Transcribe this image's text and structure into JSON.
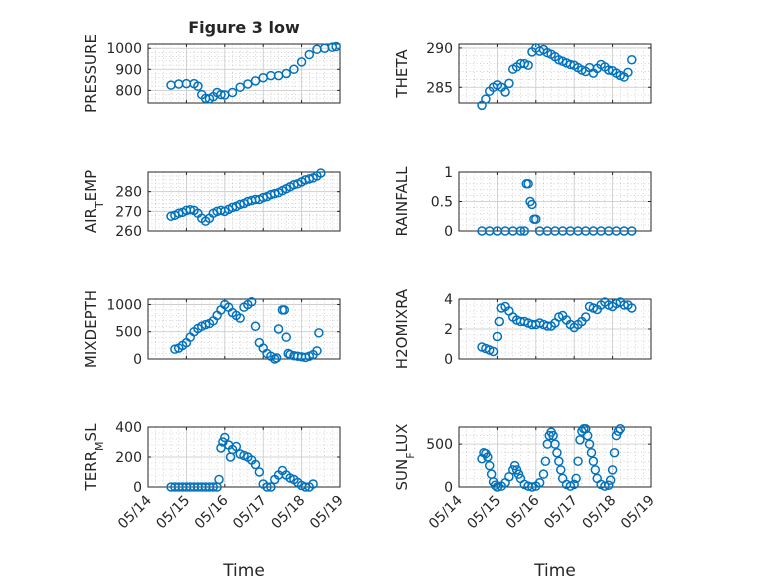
{
  "figure": {
    "title": "Figure 3 low",
    "xlabel": "Time"
  },
  "marker_color": "#0072BD",
  "x_ticks": [
    "05/14",
    "05/15",
    "05/16",
    "05/17",
    "05/18",
    "05/19"
  ],
  "chart_data": [
    {
      "type": "scatter",
      "id": "pressure",
      "title": "Figure 3 low",
      "ylabel": [
        {
          "t": "PRESSURE"
        }
      ],
      "ylim": [
        740,
        1020
      ],
      "yticks": [
        800,
        900,
        1000
      ],
      "xlim": [
        14,
        19
      ],
      "xlabel": "",
      "points": [
        [
          14.6,
          825
        ],
        [
          14.8,
          830
        ],
        [
          15.0,
          832
        ],
        [
          15.2,
          832
        ],
        [
          15.3,
          820
        ],
        [
          15.4,
          780
        ],
        [
          15.5,
          762
        ],
        [
          15.6,
          760
        ],
        [
          15.7,
          770
        ],
        [
          15.8,
          790
        ],
        [
          15.9,
          780
        ],
        [
          16.0,
          778
        ],
        [
          16.2,
          790
        ],
        [
          16.4,
          815
        ],
        [
          16.6,
          830
        ],
        [
          16.8,
          845
        ],
        [
          17.0,
          860
        ],
        [
          17.2,
          870
        ],
        [
          17.4,
          870
        ],
        [
          17.6,
          880
        ],
        [
          17.8,
          900
        ],
        [
          18.0,
          935
        ],
        [
          18.2,
          970
        ],
        [
          18.4,
          995
        ],
        [
          18.6,
          1000
        ],
        [
          18.8,
          1005
        ],
        [
          18.9,
          1008
        ]
      ]
    },
    {
      "type": "scatter",
      "id": "theta",
      "ylabel": [
        {
          "t": "THETA"
        }
      ],
      "ylim": [
        283,
        290.5
      ],
      "yticks": [
        285,
        290
      ],
      "xlim": [
        14,
        19
      ],
      "xlabel": "",
      "points": [
        [
          14.6,
          282.7
        ],
        [
          14.7,
          283.5
        ],
        [
          14.8,
          284.5
        ],
        [
          14.9,
          285.0
        ],
        [
          15.0,
          285.3
        ],
        [
          15.1,
          285.0
        ],
        [
          15.2,
          284.4
        ],
        [
          15.3,
          285.5
        ],
        [
          15.4,
          287.3
        ],
        [
          15.5,
          287.6
        ],
        [
          15.6,
          288.0
        ],
        [
          15.7,
          288.0
        ],
        [
          15.8,
          287.8
        ],
        [
          15.9,
          289.5
        ],
        [
          16.0,
          290.0
        ],
        [
          16.1,
          289.6
        ],
        [
          16.2,
          289.8
        ],
        [
          16.3,
          289.4
        ],
        [
          16.4,
          289.2
        ],
        [
          16.5,
          288.9
        ],
        [
          16.6,
          288.5
        ],
        [
          16.7,
          288.3
        ],
        [
          16.8,
          288.1
        ],
        [
          16.9,
          287.9
        ],
        [
          17.0,
          287.8
        ],
        [
          17.1,
          287.5
        ],
        [
          17.2,
          287.2
        ],
        [
          17.3,
          287.0
        ],
        [
          17.4,
          287.5
        ],
        [
          17.5,
          286.8
        ],
        [
          17.6,
          287.4
        ],
        [
          17.7,
          287.9
        ],
        [
          17.8,
          287.6
        ],
        [
          17.9,
          287.2
        ],
        [
          18.0,
          287.1
        ],
        [
          18.1,
          286.8
        ],
        [
          18.2,
          286.5
        ],
        [
          18.3,
          286.3
        ],
        [
          18.4,
          286.9
        ],
        [
          18.5,
          288.5
        ]
      ]
    },
    {
      "type": "scatter",
      "id": "airtemp",
      "ylabel": [
        {
          "t": "AIR"
        },
        {
          "t": "T",
          "sub": true
        },
        {
          "t": "EMP"
        }
      ],
      "ylim": [
        260,
        290
      ],
      "yticks": [
        260,
        270,
        280
      ],
      "xlim": [
        14,
        19
      ],
      "xlabel": "",
      "points": [
        [
          14.6,
          267.5
        ],
        [
          14.7,
          268.0
        ],
        [
          14.8,
          269.0
        ],
        [
          14.9,
          269.5
        ],
        [
          15.0,
          270.5
        ],
        [
          15.1,
          270.8
        ],
        [
          15.2,
          270.5
        ],
        [
          15.3,
          269.0
        ],
        [
          15.4,
          266.5
        ],
        [
          15.5,
          265.0
        ],
        [
          15.6,
          266.5
        ],
        [
          15.7,
          269.0
        ],
        [
          15.8,
          270.0
        ],
        [
          15.9,
          270.5
        ],
        [
          16.0,
          270.0
        ],
        [
          16.1,
          271.0
        ],
        [
          16.2,
          272.0
        ],
        [
          16.3,
          272.5
        ],
        [
          16.4,
          273.5
        ],
        [
          16.5,
          274.0
        ],
        [
          16.6,
          275.0
        ],
        [
          16.7,
          275.5
        ],
        [
          16.8,
          276.0
        ],
        [
          16.9,
          276.0
        ],
        [
          17.0,
          277.0
        ],
        [
          17.1,
          277.5
        ],
        [
          17.2,
          278.5
        ],
        [
          17.3,
          279.0
        ],
        [
          17.4,
          279.5
        ],
        [
          17.5,
          280.5
        ],
        [
          17.6,
          281.5
        ],
        [
          17.7,
          282.5
        ],
        [
          17.8,
          283.5
        ],
        [
          17.9,
          284.0
        ],
        [
          18.0,
          285.0
        ],
        [
          18.1,
          286.0
        ],
        [
          18.2,
          286.5
        ],
        [
          18.3,
          287.0
        ],
        [
          18.4,
          288.0
        ],
        [
          18.5,
          289.5
        ]
      ]
    },
    {
      "type": "scatter",
      "id": "rainfall",
      "ylabel": [
        {
          "t": "RAINFALL"
        }
      ],
      "ylim": [
        0,
        1
      ],
      "yticks": [
        0,
        0.5,
        1
      ],
      "xlim": [
        14,
        19
      ],
      "xlabel": "",
      "points": [
        [
          14.6,
          0
        ],
        [
          14.8,
          0
        ],
        [
          15.0,
          0
        ],
        [
          15.2,
          0
        ],
        [
          15.4,
          0
        ],
        [
          15.6,
          0
        ],
        [
          15.7,
          0
        ],
        [
          15.75,
          0.8
        ],
        [
          15.8,
          0.8
        ],
        [
          15.85,
          0.5
        ],
        [
          15.9,
          0.45
        ],
        [
          15.95,
          0.2
        ],
        [
          16.0,
          0.2
        ],
        [
          16.1,
          0
        ],
        [
          16.3,
          0
        ],
        [
          16.5,
          0
        ],
        [
          16.7,
          0
        ],
        [
          16.9,
          0
        ],
        [
          17.1,
          0
        ],
        [
          17.3,
          0
        ],
        [
          17.5,
          0
        ],
        [
          17.7,
          0
        ],
        [
          17.9,
          0
        ],
        [
          18.1,
          0
        ],
        [
          18.3,
          0
        ],
        [
          18.5,
          0
        ]
      ]
    },
    {
      "type": "scatter",
      "id": "mixdepth",
      "ylabel": [
        {
          "t": "MIXDEPTH"
        }
      ],
      "ylim": [
        0,
        1100
      ],
      "yticks": [
        0,
        500,
        1000
      ],
      "xlim": [
        14,
        19
      ],
      "xlabel": "",
      "points": [
        [
          14.7,
          180
        ],
        [
          14.8,
          200
        ],
        [
          14.9,
          250
        ],
        [
          15.0,
          300
        ],
        [
          15.1,
          400
        ],
        [
          15.2,
          500
        ],
        [
          15.3,
          560
        ],
        [
          15.4,
          600
        ],
        [
          15.5,
          630
        ],
        [
          15.6,
          650
        ],
        [
          15.7,
          700
        ],
        [
          15.8,
          800
        ],
        [
          15.9,
          900
        ],
        [
          16.0,
          1000
        ],
        [
          16.1,
          950
        ],
        [
          16.2,
          850
        ],
        [
          16.3,
          800
        ],
        [
          16.4,
          750
        ],
        [
          16.5,
          950
        ],
        [
          16.6,
          1000
        ],
        [
          16.7,
          1050
        ],
        [
          16.8,
          600
        ],
        [
          16.9,
          300
        ],
        [
          17.0,
          200
        ],
        [
          17.1,
          100
        ],
        [
          17.2,
          50
        ],
        [
          17.3,
          0
        ],
        [
          17.35,
          20
        ],
        [
          17.4,
          550
        ],
        [
          17.5,
          900
        ],
        [
          17.55,
          900
        ],
        [
          17.6,
          400
        ],
        [
          17.65,
          100
        ],
        [
          17.7,
          80
        ],
        [
          17.8,
          60
        ],
        [
          17.9,
          50
        ],
        [
          18.0,
          40
        ],
        [
          18.1,
          30
        ],
        [
          18.2,
          50
        ],
        [
          18.3,
          80
        ],
        [
          18.4,
          150
        ],
        [
          18.45,
          480
        ]
      ]
    },
    {
      "type": "scatter",
      "id": "h2omixra",
      "ylabel": [
        {
          "t": "H2OMIXRA"
        }
      ],
      "ylim": [
        0,
        4
      ],
      "yticks": [
        0,
        2,
        4
      ],
      "xlim": [
        14,
        19
      ],
      "xlabel": "",
      "points": [
        [
          14.6,
          0.8
        ],
        [
          14.7,
          0.7
        ],
        [
          14.8,
          0.6
        ],
        [
          14.9,
          0.5
        ],
        [
          15.0,
          1.5
        ],
        [
          15.05,
          2.5
        ],
        [
          15.1,
          3.4
        ],
        [
          15.2,
          3.5
        ],
        [
          15.3,
          3.2
        ],
        [
          15.4,
          2.8
        ],
        [
          15.5,
          2.6
        ],
        [
          15.6,
          2.5
        ],
        [
          15.7,
          2.5
        ],
        [
          15.8,
          2.4
        ],
        [
          15.9,
          2.3
        ],
        [
          16.0,
          2.3
        ],
        [
          16.1,
          2.4
        ],
        [
          16.2,
          2.3
        ],
        [
          16.3,
          2.2
        ],
        [
          16.4,
          2.2
        ],
        [
          16.5,
          2.4
        ],
        [
          16.6,
          2.8
        ],
        [
          16.7,
          2.9
        ],
        [
          16.8,
          2.6
        ],
        [
          16.9,
          2.3
        ],
        [
          17.0,
          2.1
        ],
        [
          17.1,
          2.3
        ],
        [
          17.2,
          2.5
        ],
        [
          17.3,
          2.8
        ],
        [
          17.4,
          3.5
        ],
        [
          17.5,
          3.4
        ],
        [
          17.6,
          3.3
        ],
        [
          17.7,
          3.6
        ],
        [
          17.8,
          3.8
        ],
        [
          17.9,
          3.6
        ],
        [
          18.0,
          3.5
        ],
        [
          18.1,
          3.7
        ],
        [
          18.2,
          3.8
        ],
        [
          18.3,
          3.6
        ],
        [
          18.4,
          3.6
        ],
        [
          18.5,
          3.4
        ]
      ]
    },
    {
      "type": "scatter",
      "id": "terrmsl",
      "ylabel": [
        {
          "t": "TERR"
        },
        {
          "t": "M",
          "sub": true
        },
        {
          "t": "SL"
        }
      ],
      "ylim": [
        0,
        400
      ],
      "yticks": [
        0,
        200,
        400
      ],
      "xlim": [
        14,
        19
      ],
      "xlabel": "Time",
      "points": [
        [
          14.6,
          0
        ],
        [
          14.7,
          0
        ],
        [
          14.8,
          0
        ],
        [
          14.9,
          0
        ],
        [
          15.0,
          0
        ],
        [
          15.1,
          0
        ],
        [
          15.2,
          0
        ],
        [
          15.3,
          0
        ],
        [
          15.4,
          0
        ],
        [
          15.5,
          0
        ],
        [
          15.6,
          0
        ],
        [
          15.7,
          0
        ],
        [
          15.8,
          0
        ],
        [
          15.85,
          50
        ],
        [
          15.9,
          260
        ],
        [
          15.95,
          300
        ],
        [
          16.0,
          330
        ],
        [
          16.1,
          280
        ],
        [
          16.15,
          200
        ],
        [
          16.2,
          250
        ],
        [
          16.3,
          270
        ],
        [
          16.4,
          220
        ],
        [
          16.5,
          210
        ],
        [
          16.6,
          200
        ],
        [
          16.7,
          180
        ],
        [
          16.8,
          150
        ],
        [
          16.9,
          100
        ],
        [
          17.0,
          20
        ],
        [
          17.1,
          0
        ],
        [
          17.2,
          0
        ],
        [
          17.3,
          50
        ],
        [
          17.4,
          80
        ],
        [
          17.5,
          110
        ],
        [
          17.6,
          80
        ],
        [
          17.7,
          60
        ],
        [
          17.8,
          50
        ],
        [
          17.9,
          30
        ],
        [
          18.0,
          10
        ],
        [
          18.1,
          0
        ],
        [
          18.2,
          0
        ],
        [
          18.3,
          20
        ]
      ]
    },
    {
      "type": "scatter",
      "id": "sunflux",
      "ylabel": [
        {
          "t": "SUN"
        },
        {
          "t": "F",
          "sub": true
        },
        {
          "t": "LUX"
        }
      ],
      "ylim": [
        0,
        700
      ],
      "yticks": [
        0,
        500
      ],
      "xlim": [
        14,
        19
      ],
      "xlabel": "Time",
      "points": [
        [
          14.6,
          330
        ],
        [
          14.65,
          400
        ],
        [
          14.7,
          390
        ],
        [
          14.75,
          350
        ],
        [
          14.8,
          250
        ],
        [
          14.85,
          150
        ],
        [
          14.9,
          60
        ],
        [
          14.95,
          20
        ],
        [
          15.0,
          0
        ],
        [
          15.1,
          10
        ],
        [
          15.2,
          50
        ],
        [
          15.3,
          120
        ],
        [
          15.4,
          200
        ],
        [
          15.45,
          250
        ],
        [
          15.5,
          200
        ],
        [
          15.55,
          150
        ],
        [
          15.6,
          100
        ],
        [
          15.7,
          30
        ],
        [
          15.8,
          10
        ],
        [
          15.9,
          0
        ],
        [
          16.0,
          10
        ],
        [
          16.1,
          50
        ],
        [
          16.2,
          150
        ],
        [
          16.25,
          300
        ],
        [
          16.3,
          500
        ],
        [
          16.35,
          600
        ],
        [
          16.4,
          640
        ],
        [
          16.45,
          600
        ],
        [
          16.5,
          500
        ],
        [
          16.55,
          400
        ],
        [
          16.6,
          300
        ],
        [
          16.65,
          200
        ],
        [
          16.7,
          100
        ],
        [
          16.8,
          30
        ],
        [
          16.9,
          10
        ],
        [
          17.0,
          30
        ],
        [
          17.05,
          100
        ],
        [
          17.1,
          300
        ],
        [
          17.15,
          550
        ],
        [
          17.2,
          650
        ],
        [
          17.25,
          680
        ],
        [
          17.3,
          680
        ],
        [
          17.35,
          600
        ],
        [
          17.4,
          500
        ],
        [
          17.45,
          400
        ],
        [
          17.5,
          300
        ],
        [
          17.55,
          200
        ],
        [
          17.6,
          100
        ],
        [
          17.7,
          30
        ],
        [
          17.8,
          10
        ],
        [
          17.9,
          20
        ],
        [
          17.95,
          80
        ],
        [
          18.0,
          200
        ],
        [
          18.05,
          400
        ],
        [
          18.1,
          600
        ],
        [
          18.15,
          650
        ],
        [
          18.2,
          680
        ]
      ]
    }
  ]
}
